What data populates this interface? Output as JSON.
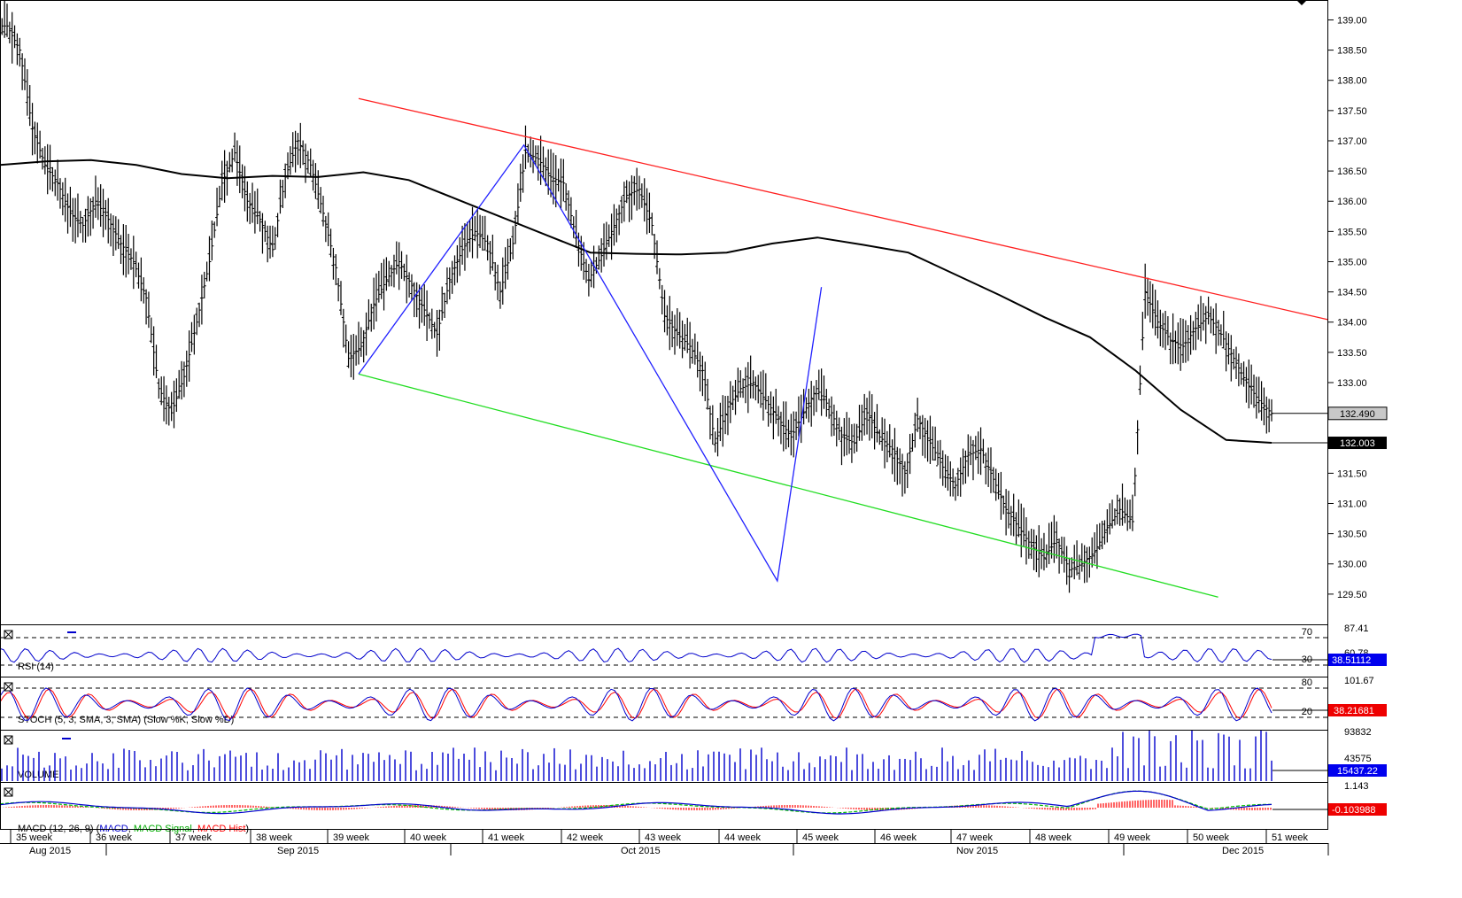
{
  "chart_data": {
    "type": "ohlc",
    "main": {
      "ylim": [
        129.0,
        139.3
      ],
      "y_ticks": [
        "139.00",
        "138.50",
        "138.00",
        "137.50",
        "137.00",
        "136.50",
        "136.00",
        "135.50",
        "135.00",
        "134.50",
        "134.00",
        "133.50",
        "133.00",
        "132.50",
        "131.50",
        "131.00",
        "130.50",
        "130.00",
        "129.50"
      ],
      "y_tick_values": [
        139.0,
        138.5,
        138.0,
        137.5,
        137.0,
        136.5,
        136.0,
        135.5,
        135.0,
        134.5,
        134.0,
        133.5,
        133.0,
        132.5,
        131.5,
        131.0,
        130.5,
        130.0,
        129.5
      ],
      "last_price": 132.49,
      "last_price_label": "132.490",
      "ma_last": 132.003,
      "ma_last_label": "132.003",
      "closes": [
        138.9,
        138.5,
        137.2,
        136.6,
        136.3,
        135.8,
        135.6,
        136.0,
        135.7,
        135.3,
        135.0,
        134.4,
        132.9,
        132.5,
        133.1,
        134.0,
        135.0,
        136.3,
        136.8,
        136.0,
        135.7,
        135.2,
        136.4,
        137.0,
        136.6,
        135.8,
        134.9,
        133.4,
        133.6,
        134.3,
        134.7,
        135.0,
        134.6,
        134.2,
        133.8,
        134.7,
        135.2,
        135.5,
        135.3,
        134.5,
        135.3,
        136.8,
        136.7,
        136.4,
        136.3,
        135.4,
        134.7,
        135.1,
        135.6,
        136.1,
        136.2,
        135.6,
        134.1,
        133.8,
        133.6,
        133.2,
        132.0,
        132.6,
        132.9,
        133.0,
        132.7,
        132.4,
        132.1,
        132.5,
        132.9,
        132.6,
        132.1,
        132.0,
        132.5,
        132.1,
        131.9,
        131.5,
        132.4,
        132.0,
        131.6,
        131.3,
        131.8,
        131.9,
        131.4,
        130.9,
        130.6,
        130.3,
        130.1,
        130.4,
        129.9,
        130.0,
        130.2,
        130.6,
        130.9,
        130.7,
        134.5,
        134.0,
        133.7,
        133.6,
        133.9,
        134.1,
        133.8,
        133.4,
        133.0,
        132.7,
        132.49
      ],
      "ma": [
        136.6,
        136.66,
        136.68,
        136.6,
        136.45,
        136.38,
        136.42,
        136.4,
        136.48,
        136.35,
        136.05,
        135.75,
        135.45,
        135.15,
        135.13,
        135.12,
        135.15,
        135.3,
        135.4,
        135.28,
        135.15,
        134.8,
        134.45,
        134.08,
        133.75,
        133.2,
        132.55,
        132.05,
        132.003
      ],
      "resistance_line": [
        [
          0,
          137.7
        ],
        [
          88,
          134.04
        ]
      ],
      "support_line": [
        [
          0,
          133.14
        ],
        [
          78,
          129.45
        ]
      ],
      "wave": [
        [
          0,
          133.14
        ],
        [
          15,
          136.93
        ],
        [
          38,
          129.72
        ],
        [
          42,
          134.58
        ]
      ]
    },
    "rsi": {
      "label": "RSI (14)",
      "levels": [
        "70",
        "30"
      ],
      "scale_top": "87.41",
      "scale_mid": "60.78",
      "last_label": "38.51112"
    },
    "stoch": {
      "label": "STOCH (5, 3, SMA, 3, SMA) (Slow %K, Slow %D)",
      "levels": [
        "80",
        "20"
      ],
      "scale_top": "101.67",
      "last_label": "38.21681"
    },
    "volume": {
      "label": "VOLUME",
      "scale_top": "93832",
      "scale_mid": "43575",
      "last_label": "15437.22"
    },
    "macd": {
      "label": "MACD (12, 26, 9)",
      "series": [
        "MACD",
        "MACD Signal",
        "MACD Hist"
      ],
      "scale_top": "1.143",
      "last_label": "-0.103988"
    },
    "weeks": [
      "35 week",
      "36 week",
      "37 week",
      "38 week",
      "39 week",
      "40 week",
      "41 week",
      "42 week",
      "43 week",
      "44 week",
      "45 week",
      "46 week",
      "47 week",
      "48 week",
      "49 week",
      "50 week",
      "51 week"
    ],
    "months": [
      "Aug 2015",
      "Sep 2015",
      "Oct 2015",
      "Nov 2015",
      "Dec 2015"
    ],
    "colors": {
      "resistance": "#ff2020",
      "support": "#22dd22",
      "wave": "#2020ff",
      "ma": "#000000",
      "rsi": "#0000cc",
      "stoch_k": "#0000cc",
      "stoch_d": "#ff0000",
      "volume": "#0000cc",
      "macd": "#0000cc",
      "macd_signal": "#00bb00",
      "macd_hist": "#ff0000",
      "badge_blue": "#0000ee",
      "badge_red": "#ee0000",
      "badge_gray": "#c8c8c8"
    }
  }
}
